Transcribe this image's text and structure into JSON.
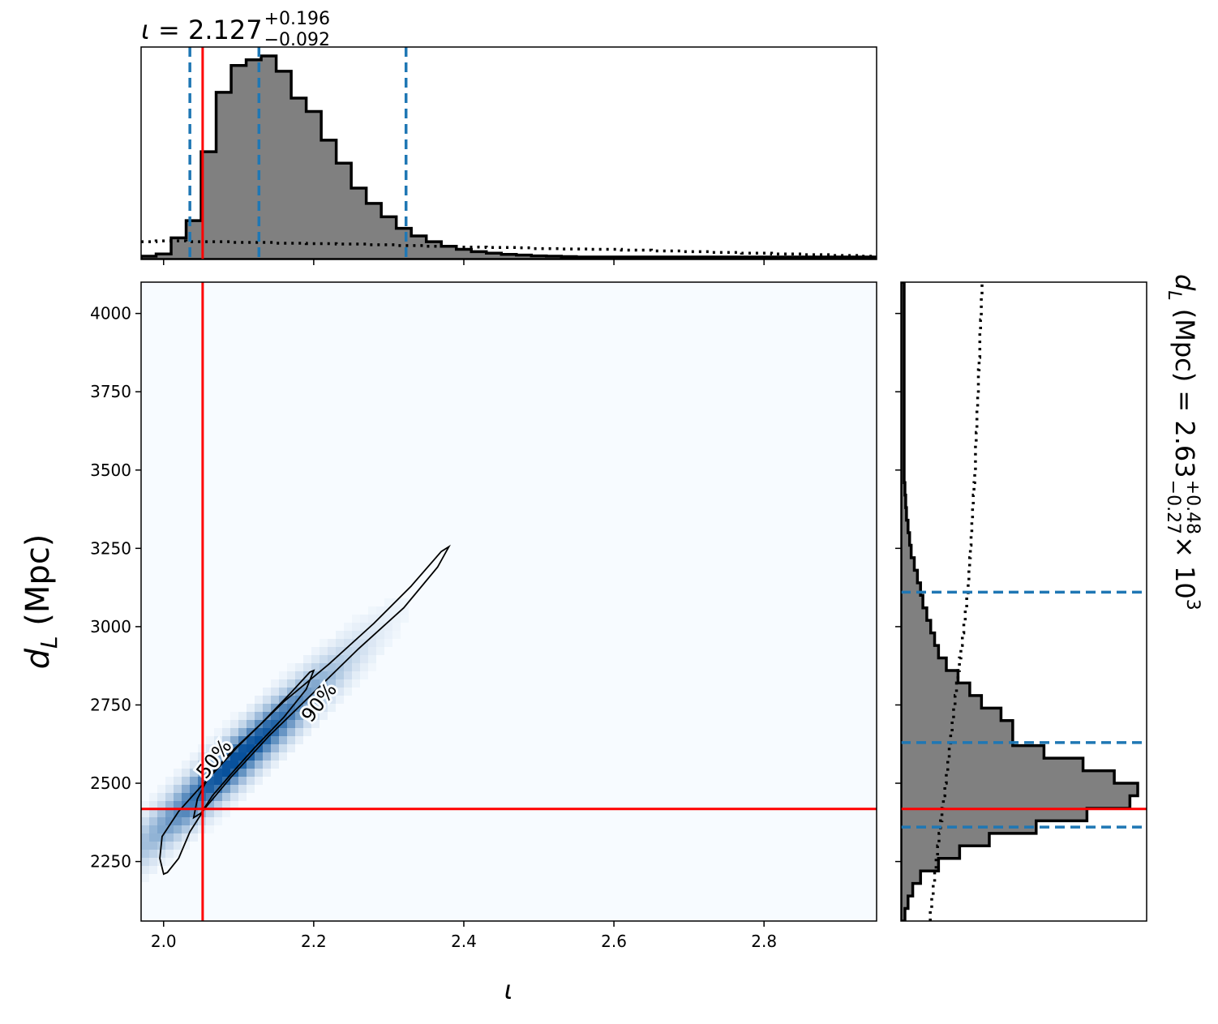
{
  "chart_data": {
    "type": "corner",
    "title_top": {
      "symbol": "ι",
      "eq": " = 2.127",
      "plus": "+0.196",
      "minus": "−0.092"
    },
    "title_right": {
      "base": "d",
      "sub": "L",
      "unit": " (Mpc) = 2.63",
      "plus": "+0.48",
      "minus": "−0.27",
      "tail": " × 10",
      "exp": "3"
    },
    "xlabel": "ι",
    "ylabel": {
      "base": "d",
      "sub": "L",
      "unit": " (Mpc)"
    },
    "xlim": [
      1.97,
      2.95
    ],
    "ylim": [
      2060,
      4100
    ],
    "xticks": [
      {
        "v": 2.0,
        "label": "2.0"
      },
      {
        "v": 2.2,
        "label": "2.2"
      },
      {
        "v": 2.4,
        "label": "2.4"
      },
      {
        "v": 2.6,
        "label": "2.6"
      },
      {
        "v": 2.8,
        "label": "2.8"
      }
    ],
    "yticks": [
      {
        "v": 2250,
        "label": "2250"
      },
      {
        "v": 2500,
        "label": "2500"
      },
      {
        "v": 2750,
        "label": "2750"
      },
      {
        "v": 3000,
        "label": "3000"
      },
      {
        "v": 3250,
        "label": "3250"
      },
      {
        "v": 3500,
        "label": "3500"
      },
      {
        "v": 3750,
        "label": "3750"
      },
      {
        "v": 4000,
        "label": "4000"
      }
    ],
    "injection": {
      "iota": 2.052,
      "dL": 2418,
      "color": "#ff0000"
    },
    "iota_quantiles": [
      2.035,
      2.127,
      2.323
    ],
    "dL_quantiles": [
      2360,
      2630,
      3110
    ],
    "quantile_color": "#1f77b4",
    "hist_fill": "#808080",
    "iota_hist": {
      "edges_start": 1.97,
      "bin_width": 0.02,
      "counts": [
        2,
        8,
        50,
        95,
        275,
        430,
        500,
        515,
        525,
        485,
        415,
        380,
        305,
        245,
        180,
        140,
        105,
        75,
        55,
        40,
        28,
        20,
        14,
        10,
        7,
        5,
        3,
        2,
        1,
        0,
        0,
        0,
        0,
        0,
        0,
        0,
        0,
        0,
        0,
        0,
        0,
        0,
        0,
        0,
        0,
        0,
        0,
        0,
        0
      ],
      "prior": [
        40,
        42,
        42,
        40,
        40,
        40,
        38,
        38,
        38,
        36,
        36,
        35,
        35,
        34,
        34,
        32,
        32,
        30,
        30,
        28,
        28,
        26,
        26,
        25,
        25,
        24,
        22,
        22,
        21,
        21,
        20,
        20,
        18,
        18,
        16,
        16,
        14,
        14,
        12,
        12,
        10,
        10,
        8,
        8,
        6,
        6,
        4,
        4,
        2
      ]
    },
    "dL_hist": {
      "edges_start": 2060,
      "bin_width": 40,
      "counts": [
        2,
        6,
        12,
        22,
        45,
        72,
        110,
        170,
        235,
        290,
        300,
        270,
        230,
        180,
        140,
        140,
        125,
        100,
        85,
        70,
        55,
        45,
        40,
        35,
        30,
        25,
        22,
        18,
        14,
        10,
        8,
        6,
        4,
        3,
        2,
        1,
        1,
        1,
        1,
        1,
        1,
        1,
        1,
        1,
        1,
        1,
        1,
        1,
        1,
        1,
        1
      ],
      "prior": [
        18,
        20,
        22,
        24,
        26,
        28,
        30,
        32,
        34,
        36,
        38,
        40,
        42,
        44,
        46,
        48,
        50,
        52,
        54,
        56,
        58,
        60,
        62,
        64,
        66,
        68,
        70,
        71,
        72,
        73,
        74,
        75,
        76,
        77,
        78,
        79,
        80,
        80,
        81,
        82,
        82,
        83,
        84,
        84,
        85,
        86,
        86,
        87,
        88,
        88,
        89
      ]
    },
    "density": {
      "center_iota": 2.1,
      "center_dL": 2580,
      "slope": 2150,
      "color": "#08519c"
    },
    "contour_90": [
      [
        2.0,
        2210
      ],
      [
        1.995,
        2260
      ],
      [
        1.998,
        2330
      ],
      [
        2.02,
        2410
      ],
      [
        2.05,
        2490
      ],
      [
        2.1,
        2620
      ],
      [
        2.16,
        2760
      ],
      [
        2.22,
        2880
      ],
      [
        2.28,
        3010
      ],
      [
        2.33,
        3130
      ],
      [
        2.37,
        3240
      ],
      [
        2.38,
        3255
      ],
      [
        2.365,
        3190
      ],
      [
        2.32,
        3060
      ],
      [
        2.26,
        2930
      ],
      [
        2.2,
        2790
      ],
      [
        2.14,
        2650
      ],
      [
        2.09,
        2520
      ],
      [
        2.055,
        2420
      ],
      [
        2.035,
        2345
      ],
      [
        2.02,
        2260
      ],
      [
        2.005,
        2215
      ],
      [
        2.0,
        2210
      ]
    ],
    "contour_50": [
      [
        2.04,
        2390
      ],
      [
        2.045,
        2450
      ],
      [
        2.06,
        2520
      ],
      [
        2.09,
        2600
      ],
      [
        2.13,
        2690
      ],
      [
        2.17,
        2790
      ],
      [
        2.195,
        2855
      ],
      [
        2.2,
        2860
      ],
      [
        2.19,
        2800
      ],
      [
        2.16,
        2710
      ],
      [
        2.12,
        2610
      ],
      [
        2.09,
        2530
      ],
      [
        2.065,
        2460
      ],
      [
        2.05,
        2405
      ],
      [
        2.04,
        2390
      ]
    ],
    "contour_labels": [
      {
        "text": "50%",
        "x": 2.074,
        "y": 2565,
        "angle": -52
      },
      {
        "text": "90%",
        "x": 2.214,
        "y": 2745,
        "angle": -52
      }
    ]
  }
}
